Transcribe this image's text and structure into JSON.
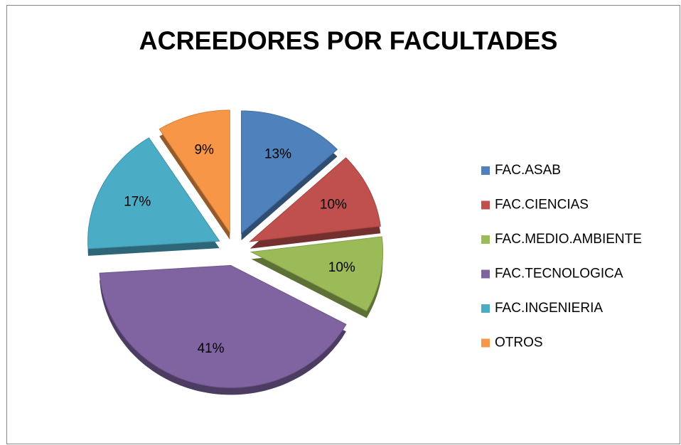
{
  "chart_data": {
    "type": "pie",
    "title": "ACREEDORES POR FACULTADES",
    "categories": [
      "FAC.ASAB",
      "FAC.CIENCIAS",
      "FAC.MEDIO.AMBIENTE",
      "FAC.TECNOLOGICA",
      "FAC.INGENIERIA",
      "OTROS"
    ],
    "values": [
      13,
      10,
      10,
      41,
      17,
      9
    ],
    "value_labels": [
      "13%",
      "10%",
      "10%",
      "41%",
      "17%",
      "9%"
    ],
    "colors": [
      "#4f81bd",
      "#c0504d",
      "#9bbb59",
      "#8064a2",
      "#4bacc6",
      "#f79646"
    ],
    "legend": "right"
  }
}
